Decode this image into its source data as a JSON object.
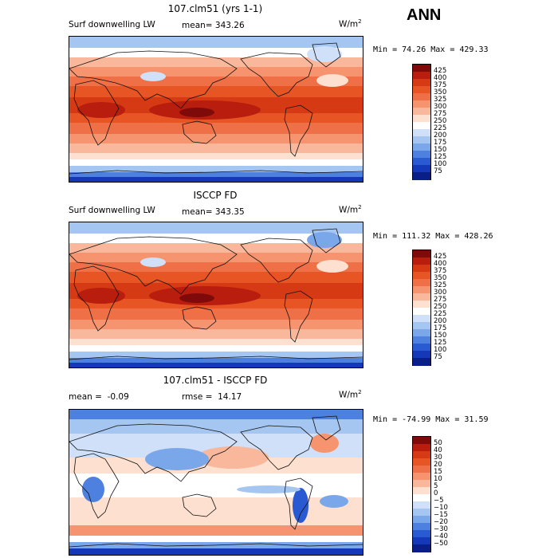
{
  "season": "ANN",
  "panels": [
    {
      "title": "107.clm51 (yrs 1-1)",
      "variable": "Surf downwelling LW",
      "stat_label": "mean=",
      "stat_value": "343.26",
      "units_base": "W/m",
      "units_exp": "2",
      "minmax": "Min =  74.26 Max = 429.33"
    },
    {
      "title": "ISCCP FD",
      "variable": "Surf downwelling LW",
      "stat_label": "mean=",
      "stat_value": "343.35",
      "units_base": "W/m",
      "units_exp": "2",
      "minmax": "Min = 111.32 Max = 428.26"
    },
    {
      "title": "107.clm51 - ISCCP FD",
      "mean_label": "mean =",
      "mean_value": "-0.09",
      "rmse_label": "rmse =",
      "rmse_value": "14.17",
      "units_base": "W/m",
      "units_exp": "2",
      "minmax": "Min = -74.99 Max =  31.59"
    }
  ],
  "chart_data": [
    {
      "type": "heatmap",
      "title": "107.clm51 (yrs 1-1)",
      "subtitle": "Surf downwelling LW",
      "units": "W/m2",
      "mean": 343.26,
      "min": 74.26,
      "max": 429.33,
      "colorbar_levels": [
        "425",
        "400",
        "375",
        "350",
        "325",
        "300",
        "275",
        "250",
        "225",
        "200",
        "175",
        "150",
        "125",
        "100",
        "75"
      ],
      "colors": [
        "#7f0a0a",
        "#b81d0e",
        "#d63a14",
        "#e65523",
        "#ef7046",
        "#f5946e",
        "#f9b79b",
        "#fde0cf",
        "#ffffff",
        "#cfe0f8",
        "#a6c6f2",
        "#7aa6ea",
        "#4e80e0",
        "#2a5ad2",
        "#1438b8",
        "#0a1e88"
      ]
    },
    {
      "type": "heatmap",
      "title": "ISCCP FD",
      "subtitle": "Surf downwelling LW",
      "units": "W/m2",
      "mean": 343.35,
      "min": 111.32,
      "max": 428.26,
      "colorbar_levels": [
        "425",
        "400",
        "375",
        "350",
        "325",
        "300",
        "275",
        "250",
        "225",
        "200",
        "175",
        "150",
        "125",
        "100",
        "75"
      ],
      "colors": [
        "#7f0a0a",
        "#b81d0e",
        "#d63a14",
        "#e65523",
        "#ef7046",
        "#f5946e",
        "#f9b79b",
        "#fde0cf",
        "#ffffff",
        "#cfe0f8",
        "#a6c6f2",
        "#7aa6ea",
        "#4e80e0",
        "#2a5ad2",
        "#1438b8",
        "#0a1e88"
      ]
    },
    {
      "type": "heatmap",
      "title": "107.clm51 - ISCCP FD",
      "units": "W/m2",
      "mean": -0.09,
      "rmse": 14.17,
      "min": -74.99,
      "max": 31.59,
      "colorbar_levels": [
        "50",
        "40",
        "30",
        "20",
        "15",
        "10",
        "5",
        "0",
        "−5",
        "−10",
        "−15",
        "−20",
        "−30",
        "−40",
        "−50"
      ],
      "colors": [
        "#7f0a0a",
        "#b81d0e",
        "#d63a14",
        "#e65523",
        "#ef7046",
        "#f5946e",
        "#f9b79b",
        "#fde0cf",
        "#ffffff",
        "#cfe0f8",
        "#a6c6f2",
        "#7aa6ea",
        "#4e80e0",
        "#2a5ad2",
        "#1438b8",
        "#0a1e88"
      ]
    }
  ]
}
